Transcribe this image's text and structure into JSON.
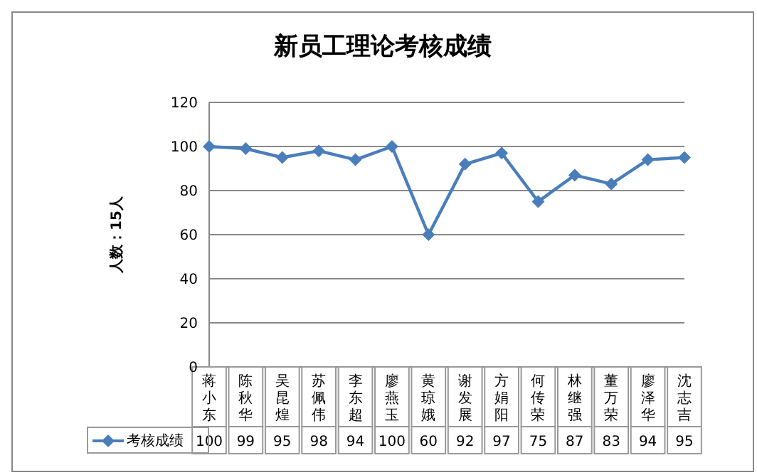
{
  "chart_data": {
    "type": "line",
    "title": "新员工理论考核成绩",
    "ylabel": "人数：15人",
    "categories": [
      "蒋小东",
      "陈秋华",
      "吴昆煌",
      "苏佩伟",
      "李东超",
      "廖燕玉",
      "黄琼娥",
      "谢发展",
      "方娟阳",
      "何传荣",
      "林继强",
      "董万荣",
      "廖泽华",
      "沈志吉"
    ],
    "series": [
      {
        "name": "考核成绩",
        "color": "#4a7ebb",
        "values": [
          100,
          99,
          95,
          98,
          94,
          100,
          60,
          92,
          97,
          75,
          87,
          83,
          94,
          95
        ]
      }
    ],
    "ylim": [
      0,
      120
    ],
    "yticks": [
      0,
      20,
      40,
      60,
      80,
      100,
      120
    ],
    "grid": "y",
    "legend": "bottom",
    "marker": "diamond",
    "line_style": "solid",
    "data_labels": true
  }
}
